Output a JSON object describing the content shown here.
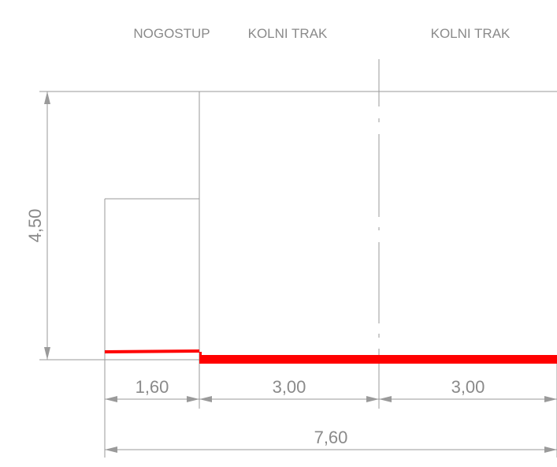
{
  "headers": {
    "sidewalk": "NOGOSTUP",
    "lane_left": "KOLNI TRAK",
    "lane_right": "KOLNI TRAK"
  },
  "dimensions": {
    "height": "4,50",
    "sidewalk_width": "1,60",
    "lane_left_width": "3,00",
    "lane_right_width": "3,00",
    "total_width": "7,60"
  },
  "colors": {
    "line": "#9a9a9a",
    "text": "#8a8a8a",
    "road_surface": "#ff0000"
  }
}
